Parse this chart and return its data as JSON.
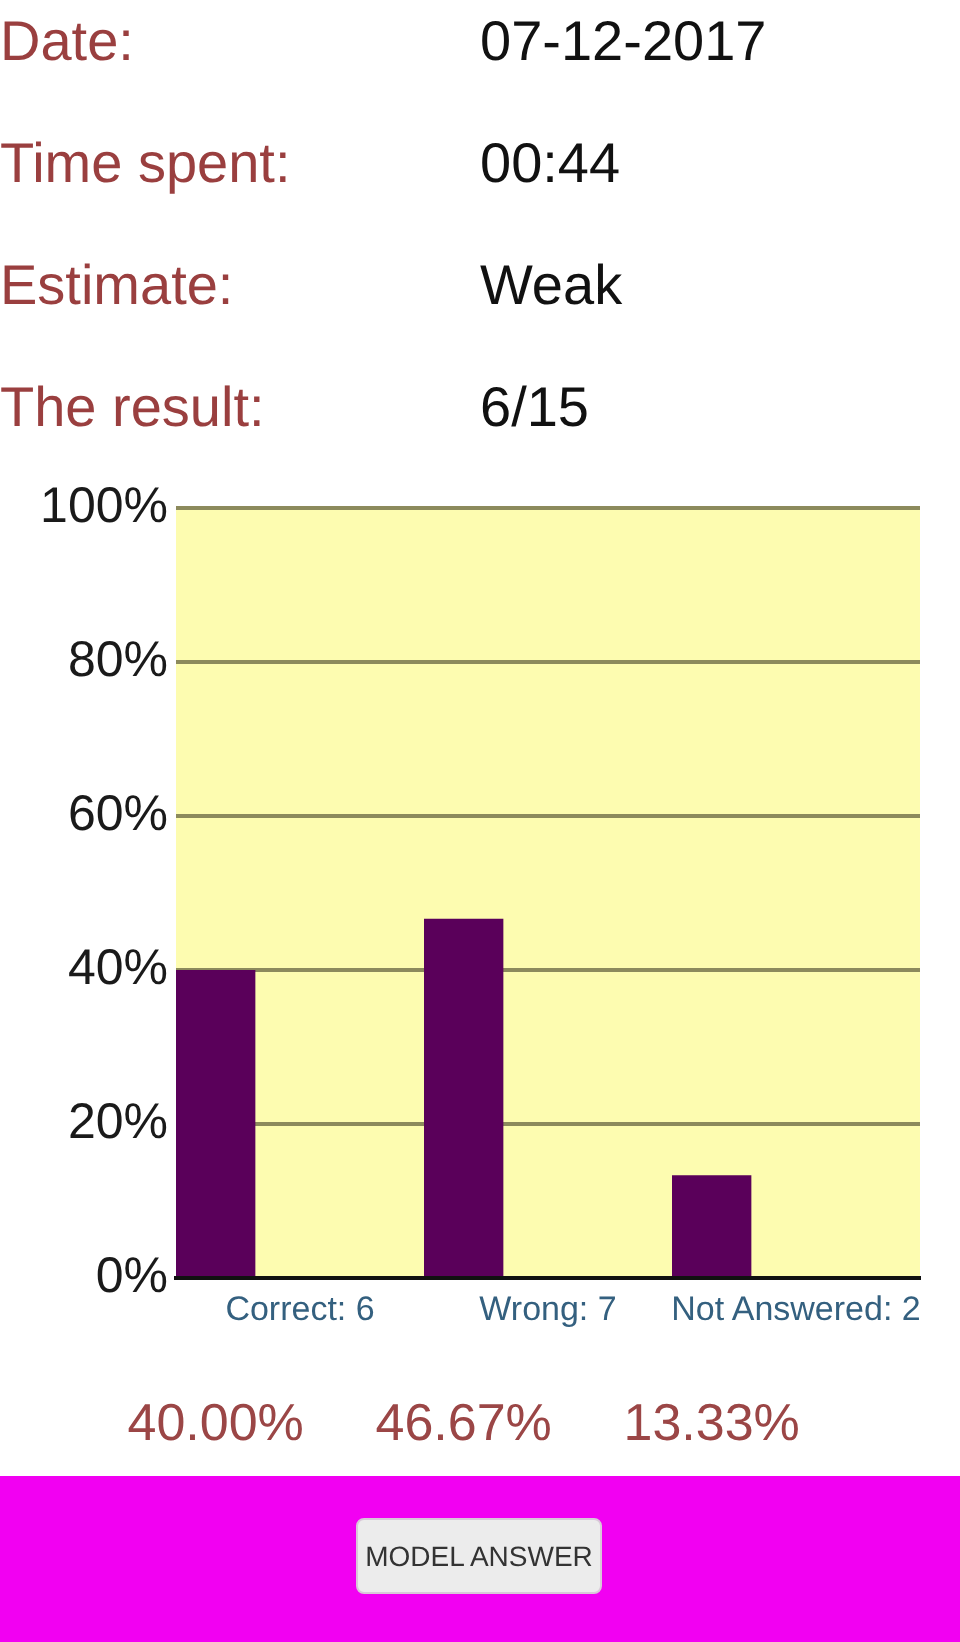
{
  "chart_data": {
    "type": "bar",
    "categories": [
      "Correct: 6",
      "Wrong: 7",
      "Not Answered: 2"
    ],
    "values": [
      40,
      46.67,
      13.33
    ],
    "color": "#5a005a",
    "value_labels": [
      "40.00%",
      "46.67%",
      "13.33%"
    ],
    "ylim": [
      0,
      100
    ],
    "yticks": [
      {
        "value": 0,
        "label": "0%"
      },
      {
        "value": 20,
        "label": "20%"
      },
      {
        "value": 40,
        "label": "40%"
      },
      {
        "value": 60,
        "label": "60%"
      },
      {
        "value": 80,
        "label": "80%"
      },
      {
        "value": 100,
        "label": "100%"
      }
    ],
    "grid": "y",
    "annotations": [
      "Date:",
      "07-12-2017",
      "Time spent:",
      "00:44",
      "Estimate:",
      "Weak",
      "The result:",
      "6/15",
      "MODEL ANSWER"
    ]
  }
}
